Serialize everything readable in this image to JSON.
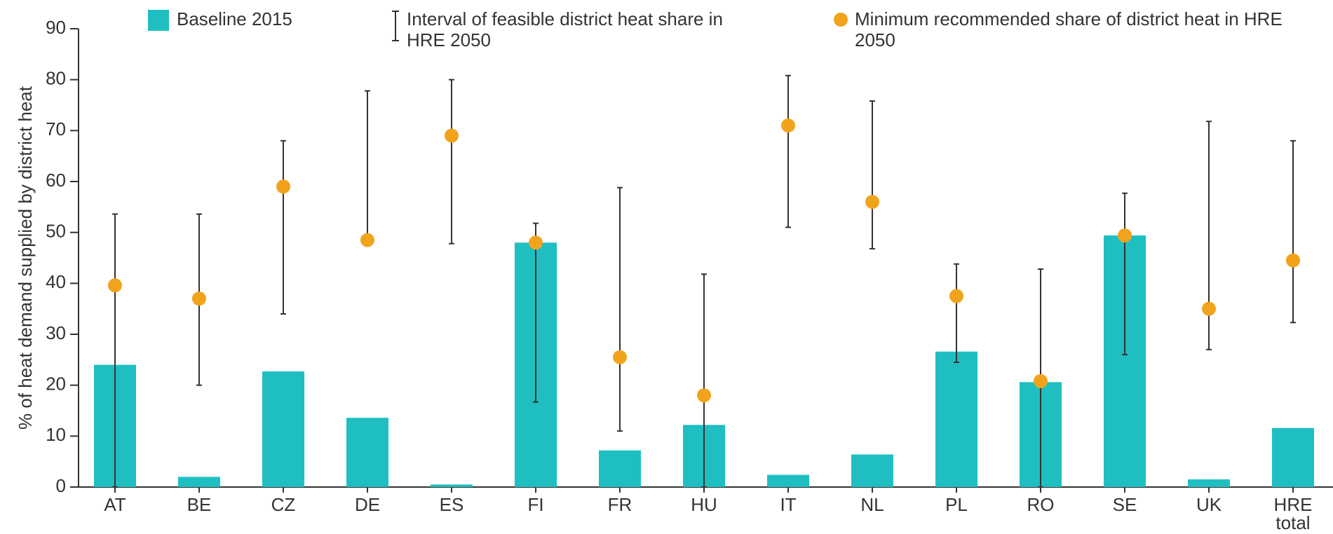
{
  "chart_data": {
    "type": "bar-interval",
    "y_label": "% of heat demand supplied by district heat",
    "categories": [
      "AT",
      "BE",
      "CZ",
      "DE",
      "ES",
      "FI",
      "FR",
      "HU",
      "IT",
      "NL",
      "PL",
      "RO",
      "SE",
      "UK",
      "HRE total"
    ],
    "ylim": [
      0,
      90
    ],
    "yticks": [
      0,
      10,
      20,
      30,
      40,
      50,
      60,
      70,
      80,
      90
    ],
    "series": [
      {
        "name": "Baseline 2015",
        "color": "#1fbfc1",
        "values": [
          24,
          2,
          22.7,
          13.6,
          0.5,
          48,
          7.2,
          12.2,
          2.4,
          6.4,
          26.6,
          20.6,
          49.4,
          1.5,
          11.6
        ]
      },
      {
        "name": "Interval of feasible district heat share in HRE 2050",
        "color": "#333333",
        "low": [
          0,
          20,
          34,
          48.5,
          47.8,
          16.7,
          11,
          0,
          51,
          46.8,
          24.5,
          0,
          26,
          27,
          32.3
        ],
        "high": [
          53.6,
          53.6,
          68,
          77.8,
          80,
          51.8,
          58.8,
          41.8,
          80.8,
          75.8,
          43.8,
          42.8,
          57.7,
          71.8,
          68
        ]
      },
      {
        "name": "Minimum recommended share of district heat in HRE 2050",
        "color": "#f2a31c",
        "values": [
          39.6,
          37,
          59,
          48.5,
          69,
          48,
          25.5,
          18,
          71,
          56,
          37.5,
          20.8,
          49.4,
          35,
          44.5
        ]
      }
    ]
  }
}
